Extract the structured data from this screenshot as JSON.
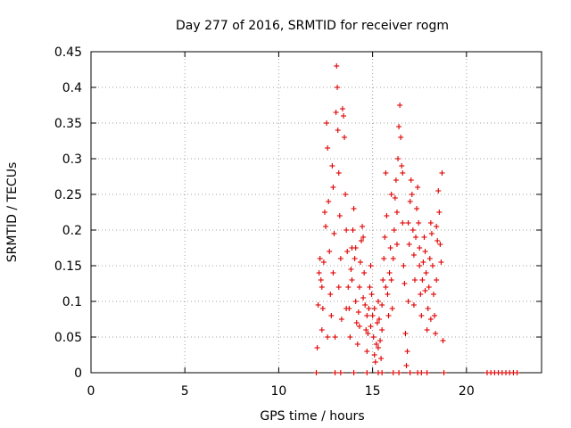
{
  "chart_data": {
    "type": "scatter",
    "title": "Day 277 of 2016, SRMTID for receiver rogm",
    "xlabel": "GPS time / hours",
    "ylabel": "SRMTID / TECUs",
    "xlim": [
      0,
      24
    ],
    "ylim": [
      0,
      0.45
    ],
    "x_ticks": [
      0,
      5,
      10,
      15,
      20
    ],
    "y_ticks": [
      0,
      0.05,
      0.1,
      0.15,
      0.2,
      0.25,
      0.3,
      0.35,
      0.4,
      0.45
    ],
    "x_tick_labels": [
      "0",
      "5",
      "10",
      "15",
      "20"
    ],
    "y_tick_labels": [
      "0",
      "0.05",
      "0.1",
      "0.15",
      "0.2",
      "0.25",
      "0.3",
      "0.35",
      "0.4",
      "0.45"
    ],
    "grid": true,
    "marker": "plus",
    "color": "#e00000",
    "points": [
      [
        12.05,
        0.035
      ],
      [
        12.1,
        0.095
      ],
      [
        12.15,
        0.14
      ],
      [
        12.2,
        0.16
      ],
      [
        12.25,
        0.13
      ],
      [
        12.3,
        0.06
      ],
      [
        12.35,
        0.09
      ],
      [
        12.4,
        0.155
      ],
      [
        12.45,
        0.225
      ],
      [
        12.5,
        0.205
      ],
      [
        12.55,
        0.35
      ],
      [
        12.6,
        0.315
      ],
      [
        12.65,
        0.24
      ],
      [
        12.7,
        0.17
      ],
      [
        12.75,
        0.11
      ],
      [
        12.8,
        0.08
      ],
      [
        12.85,
        0.29
      ],
      [
        12.9,
        0.26
      ],
      [
        12.95,
        0.195
      ],
      [
        13.0,
        0.05
      ],
      [
        13.05,
        0.365
      ],
      [
        13.08,
        0.43
      ],
      [
        13.12,
        0.4
      ],
      [
        13.15,
        0.34
      ],
      [
        13.2,
        0.28
      ],
      [
        13.25,
        0.22
      ],
      [
        13.3,
        0.16
      ],
      [
        13.35,
        0.075
      ],
      [
        13.4,
        0.37
      ],
      [
        13.45,
        0.36
      ],
      [
        13.5,
        0.33
      ],
      [
        13.55,
        0.25
      ],
      [
        13.6,
        0.2
      ],
      [
        13.65,
        0.17
      ],
      [
        13.7,
        0.12
      ],
      [
        13.75,
        0.09
      ],
      [
        13.8,
        0.05
      ],
      [
        13.85,
        0.145
      ],
      [
        13.9,
        0.175
      ],
      [
        13.95,
        0.2
      ],
      [
        14.0,
        0.23
      ],
      [
        14.05,
        0.16
      ],
      [
        14.1,
        0.1
      ],
      [
        14.15,
        0.07
      ],
      [
        14.2,
        0.04
      ],
      [
        14.25,
        0.085
      ],
      [
        14.3,
        0.12
      ],
      [
        14.35,
        0.155
      ],
      [
        14.4,
        0.185
      ],
      [
        14.45,
        0.205
      ],
      [
        14.5,
        0.19
      ],
      [
        14.55,
        0.14
      ],
      [
        14.6,
        0.095
      ],
      [
        14.65,
        0.06
      ],
      [
        14.7,
        0.03
      ],
      [
        14.75,
        0.055
      ],
      [
        14.8,
        0.09
      ],
      [
        14.85,
        0.12
      ],
      [
        14.9,
        0.15
      ],
      [
        14.95,
        0.11
      ],
      [
        15.0,
        0.08
      ],
      [
        15.05,
        0.05
      ],
      [
        15.1,
        0.025
      ],
      [
        15.15,
        0.015
      ],
      [
        15.2,
        0.04
      ],
      [
        15.25,
        0.07
      ],
      [
        15.3,
        0.1
      ],
      [
        15.35,
        0.075
      ],
      [
        15.4,
        0.045
      ],
      [
        15.45,
        0.02
      ],
      [
        15.5,
        0.06
      ],
      [
        15.55,
        0.13
      ],
      [
        15.6,
        0.16
      ],
      [
        15.65,
        0.19
      ],
      [
        15.7,
        0.28
      ],
      [
        15.75,
        0.22
      ],
      [
        15.8,
        0.11
      ],
      [
        15.85,
        0.08
      ],
      [
        15.9,
        0.14
      ],
      [
        15.95,
        0.175
      ],
      [
        16.0,
        0.13
      ],
      [
        16.05,
        0.09
      ],
      [
        16.1,
        0.16
      ],
      [
        16.15,
        0.2
      ],
      [
        16.2,
        0.245
      ],
      [
        16.25,
        0.27
      ],
      [
        16.3,
        0.225
      ],
      [
        16.35,
        0.3
      ],
      [
        16.4,
        0.345
      ],
      [
        16.45,
        0.375
      ],
      [
        16.5,
        0.33
      ],
      [
        16.55,
        0.29
      ],
      [
        16.6,
        0.21
      ],
      [
        16.65,
        0.15
      ],
      [
        16.7,
        0.125
      ],
      [
        16.75,
        0.055
      ],
      [
        16.8,
        0.01
      ],
      [
        16.85,
        0.03
      ],
      [
        16.9,
        0.1
      ],
      [
        16.95,
        0.18
      ],
      [
        17.0,
        0.24
      ],
      [
        17.05,
        0.27
      ],
      [
        17.1,
        0.25
      ],
      [
        17.15,
        0.2
      ],
      [
        17.2,
        0.165
      ],
      [
        17.25,
        0.13
      ],
      [
        17.3,
        0.19
      ],
      [
        17.35,
        0.23
      ],
      [
        17.4,
        0.26
      ],
      [
        17.45,
        0.21
      ],
      [
        17.5,
        0.15
      ],
      [
        17.55,
        0.11
      ],
      [
        17.6,
        0.08
      ],
      [
        17.65,
        0.13
      ],
      [
        17.7,
        0.155
      ],
      [
        17.75,
        0.19
      ],
      [
        17.8,
        0.17
      ],
      [
        17.85,
        0.14
      ],
      [
        17.9,
        0.06
      ],
      [
        17.95,
        0.09
      ],
      [
        18.0,
        0.12
      ],
      [
        18.05,
        0.16
      ],
      [
        18.1,
        0.21
      ],
      [
        18.15,
        0.195
      ],
      [
        18.2,
        0.15
      ],
      [
        18.25,
        0.11
      ],
      [
        18.3,
        0.08
      ],
      [
        18.35,
        0.055
      ],
      [
        18.4,
        0.13
      ],
      [
        18.45,
        0.185
      ],
      [
        18.5,
        0.255
      ],
      [
        18.55,
        0.225
      ],
      [
        18.6,
        0.18
      ],
      [
        18.65,
        0.155
      ],
      [
        18.7,
        0.28
      ],
      [
        18.75,
        0.045
      ],
      [
        12.3,
        0.12
      ],
      [
        12.6,
        0.05
      ],
      [
        12.9,
        0.14
      ],
      [
        13.2,
        0.12
      ],
      [
        13.6,
        0.09
      ],
      [
        13.9,
        0.13
      ],
      [
        14.1,
        0.175
      ],
      [
        14.3,
        0.065
      ],
      [
        14.5,
        0.105
      ],
      [
        14.7,
        0.08
      ],
      [
        14.9,
        0.065
      ],
      [
        15.1,
        0.09
      ],
      [
        15.3,
        0.035
      ],
      [
        15.5,
        0.095
      ],
      [
        15.7,
        0.12
      ],
      [
        16.0,
        0.25
      ],
      [
        16.3,
        0.18
      ],
      [
        16.6,
        0.28
      ],
      [
        16.9,
        0.21
      ],
      [
        17.2,
        0.095
      ],
      [
        17.5,
        0.175
      ],
      [
        17.8,
        0.115
      ],
      [
        18.1,
        0.075
      ],
      [
        18.4,
        0.205
      ],
      [
        12.0,
        0.0
      ],
      [
        13.0,
        0.0
      ],
      [
        13.3,
        0.0
      ],
      [
        14.0,
        0.0
      ],
      [
        14.7,
        0.0
      ],
      [
        15.3,
        0.0
      ],
      [
        15.5,
        0.0
      ],
      [
        16.1,
        0.0
      ],
      [
        16.4,
        0.0
      ],
      [
        17.0,
        0.0
      ],
      [
        17.4,
        0.0
      ],
      [
        17.6,
        0.0
      ],
      [
        17.9,
        0.0
      ],
      [
        18.8,
        0.0
      ],
      [
        21.1,
        0.0
      ],
      [
        21.3,
        0.0
      ],
      [
        21.5,
        0.0
      ],
      [
        21.7,
        0.0
      ],
      [
        21.9,
        0.0
      ],
      [
        22.1,
        0.0
      ],
      [
        22.3,
        0.0
      ],
      [
        22.5,
        0.0
      ],
      [
        22.7,
        0.0
      ]
    ]
  }
}
